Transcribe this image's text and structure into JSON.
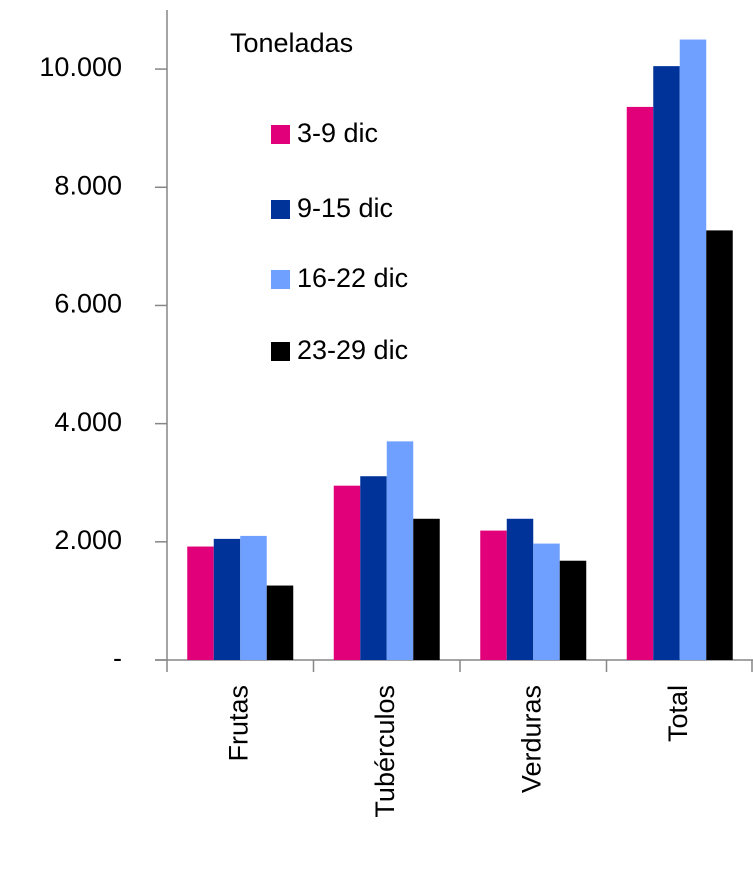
{
  "chart_data": {
    "type": "bar",
    "legend_title": "Toneladas",
    "categories": [
      "Frutas",
      "Tubérculos",
      "Verduras",
      "Total"
    ],
    "series": [
      {
        "name": "3-9 dic",
        "color": "#e2007a",
        "values": [
          1920,
          2950,
          2190,
          9360
        ]
      },
      {
        "name": "9-15 dic",
        "color": "#003399",
        "values": [
          2050,
          3110,
          2390,
          10050
        ]
      },
      {
        "name": "16-22 dic",
        "color": "#6fa0ff",
        "values": [
          2100,
          3700,
          1970,
          10500
        ]
      },
      {
        "name": "23-29 dic",
        "color": "#000000",
        "values": [
          1260,
          2390,
          1680,
          7270
        ]
      }
    ],
    "ylim": [
      0,
      11000
    ],
    "yticks": [
      {
        "value": 0,
        "label": "-"
      },
      {
        "value": 2000,
        "label": "2.000"
      },
      {
        "value": 4000,
        "label": "4.000"
      },
      {
        "value": 6000,
        "label": "6.000"
      },
      {
        "value": 8000,
        "label": "8.000"
      },
      {
        "value": 10000,
        "label": "10.000"
      }
    ],
    "grid": false
  }
}
